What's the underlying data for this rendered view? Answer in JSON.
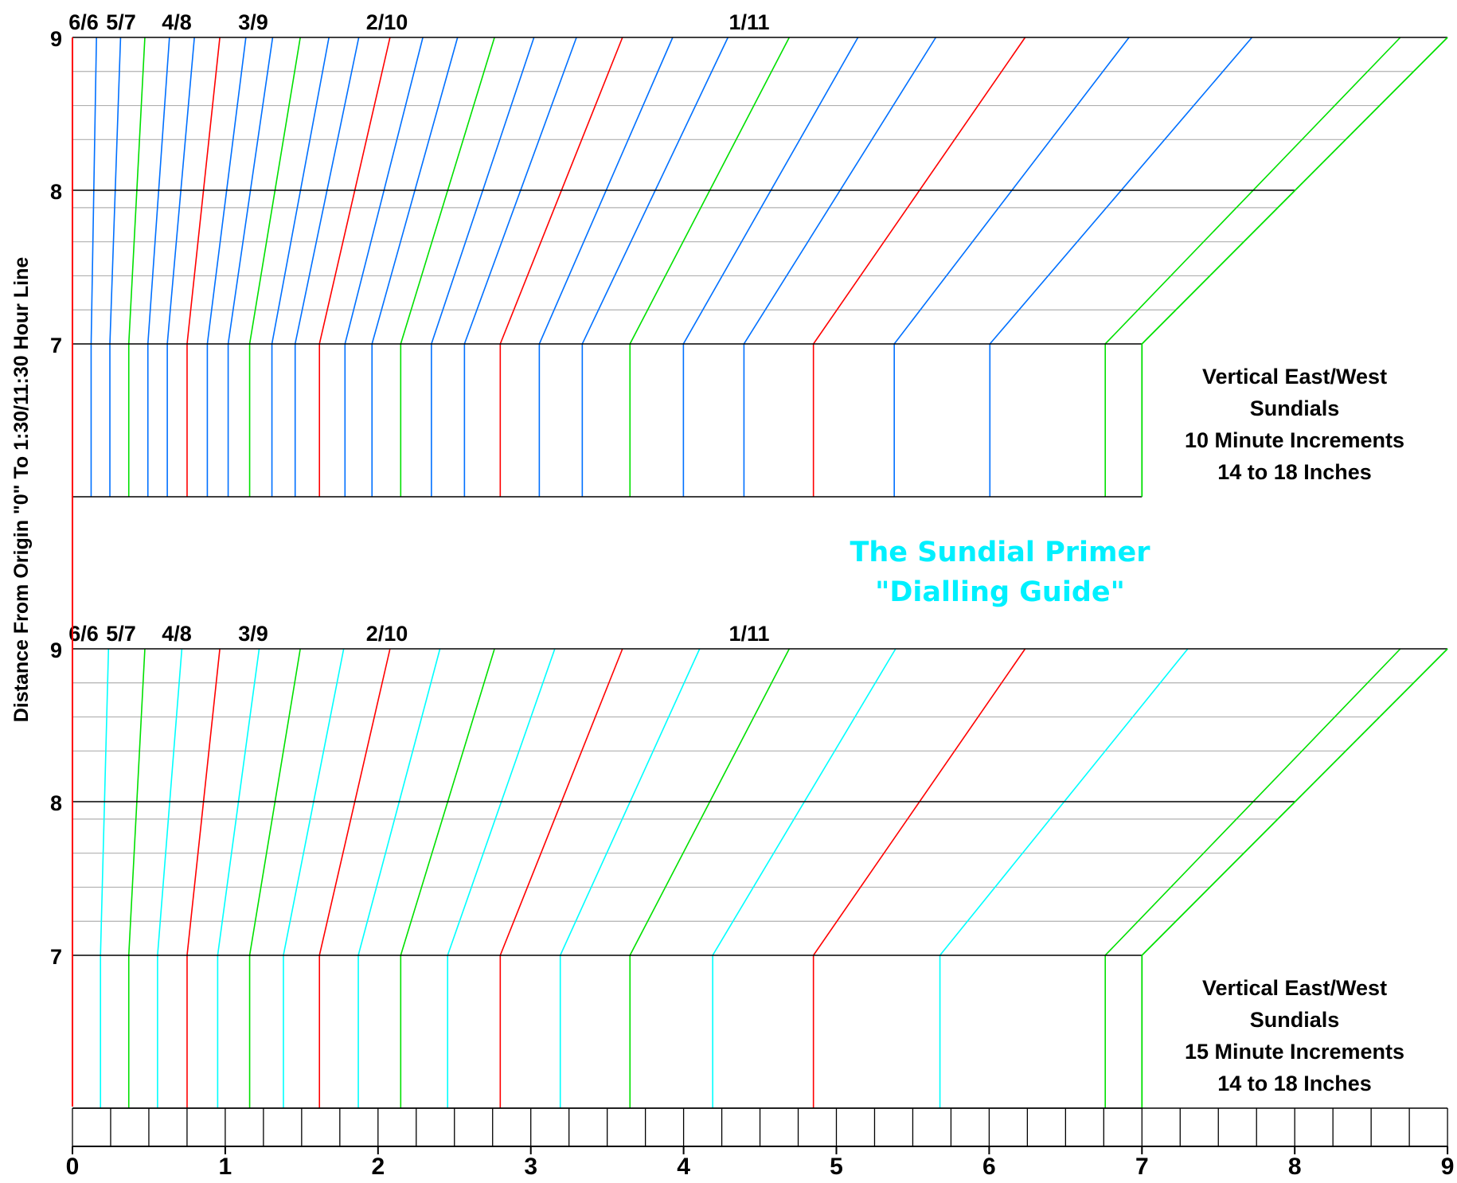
{
  "y_axis_label": "Distance From Origin \"0\" To 1:30/11:30 Hour Line",
  "x_ticks": [
    "0",
    "1",
    "2",
    "3",
    "4",
    "5",
    "6",
    "7",
    "8",
    "9"
  ],
  "subtitle": {
    "line1": "The Sundial Primer",
    "line2": "\"Dialling Guide\""
  },
  "colors": {
    "hour": "#ff0000",
    "half_hour": "#00e000",
    "increment_10min": "#0070ff",
    "increment_15min": "#00ffff",
    "minor_grid": "#b0b0b0",
    "major_grid": "#000000",
    "subtitle": "#00f0ff"
  },
  "panels": [
    {
      "id": "ten",
      "y_ticks": [
        "7",
        "8",
        "9"
      ],
      "hour_labels": [
        "6/6",
        "5/7",
        "4/8",
        "3/9",
        "2/10",
        "1/11"
      ],
      "caption": [
        "Vertical East/West",
        "Sundials",
        "10 Minute Increments",
        "14 to 18 Inches"
      ]
    },
    {
      "id": "fifteen",
      "y_ticks": [
        "7",
        "8",
        "9"
      ],
      "hour_labels": [
        "6/6",
        "5/7",
        "4/8",
        "3/9",
        "2/10",
        "1/11"
      ],
      "caption": [
        "Vertical East/West",
        "Sundials",
        "15 Minute Increments",
        "14 to 18 Inches"
      ]
    }
  ]
}
